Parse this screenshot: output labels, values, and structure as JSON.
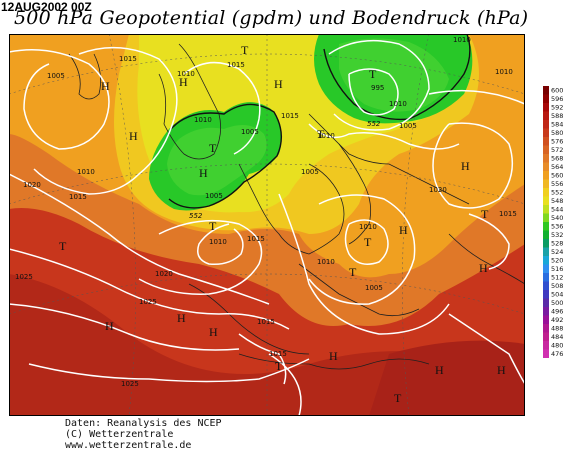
{
  "header": {
    "date": "12AUG2002 00Z",
    "title": "500 hPa Geopotential (gpdm) und Bodendruck (hPa)"
  },
  "map": {
    "colors": {
      "green_low": "#1ec41e",
      "yellow": "#e8e020",
      "orange": "#f0a020",
      "red": "#d43a1a",
      "dark_red": "#b22818",
      "isobar": "#ffffff",
      "coast": "#202020"
    },
    "isobar_labels": [
      "1005",
      "1015",
      "1015",
      "1010",
      "1010",
      "995",
      "1010",
      "1015",
      "1005",
      "1010",
      "1005",
      "1010",
      "1010",
      "1005",
      "1010",
      "1015",
      "1005",
      "1010",
      "1010",
      "1010",
      "1015",
      "1020",
      "1020",
      "1005",
      "1020",
      "1025",
      "1015",
      "1025",
      "1015",
      "1015",
      "1025"
    ],
    "height_labels": [
      "552",
      "552"
    ],
    "highs": [
      "H",
      "H",
      "H",
      "H",
      "H",
      "H",
      "H",
      "H",
      "H",
      "H",
      "H",
      "H",
      "H",
      "H"
    ],
    "lows": [
      "T",
      "T",
      "T",
      "T",
      "T",
      "T",
      "T",
      "T",
      "T",
      "T",
      "T"
    ]
  },
  "color_scale": {
    "labels": [
      "600",
      "596",
      "592",
      "588",
      "584",
      "580",
      "576",
      "572",
      "568",
      "564",
      "560",
      "556",
      "552",
      "548",
      "544",
      "540",
      "536",
      "532",
      "528",
      "524",
      "520",
      "516",
      "512",
      "508",
      "504",
      "500",
      "496",
      "492",
      "488",
      "484",
      "480",
      "476"
    ],
    "colors": [
      "#780000",
      "#900000",
      "#a80808",
      "#b81810",
      "#c02818",
      "#c83a1c",
      "#d05020",
      "#d86424",
      "#e07828",
      "#e88c28",
      "#f0a020",
      "#f0b824",
      "#f0d020",
      "#e8e020",
      "#c0e020",
      "#80d820",
      "#30c820",
      "#10b030",
      "#0a9c64",
      "#1aa2a8",
      "#1aa8d8",
      "#3090f0",
      "#2a6ee0",
      "#3050d0",
      "#4038c0",
      "#5a2aa8",
      "#7a1aa0",
      "#9a1098",
      "#b01890",
      "#c02090",
      "#c828a0",
      "#d030b0"
    ]
  },
  "credits": {
    "line1": "Daten: Reanalysis des NCEP",
    "line2": "(C) Wetterzentrale",
    "line3": "www.wetterzentrale.de"
  }
}
